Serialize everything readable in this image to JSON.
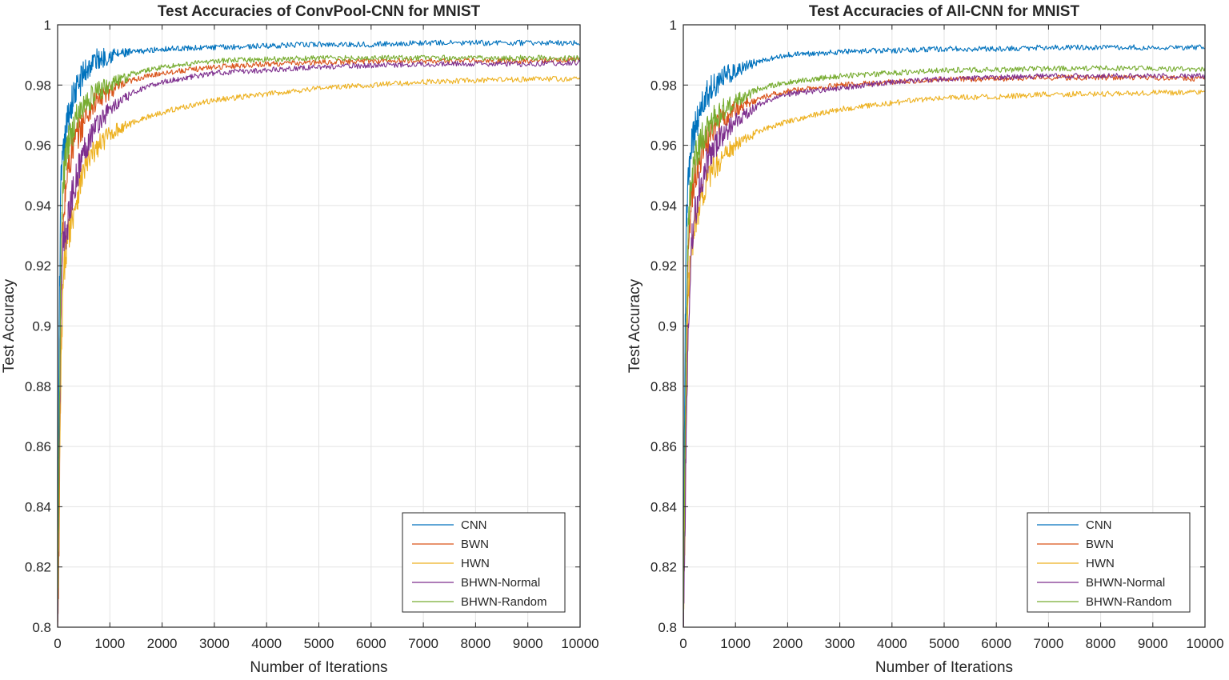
{
  "chart_data": [
    {
      "type": "line",
      "title": "Test Accuracies of ConvPool-CNN for MNIST",
      "xlabel": "Number of Iterations",
      "ylabel": "Test Accuracy",
      "xlim": [
        0,
        10000
      ],
      "ylim": [
        0.8,
        1
      ],
      "xticks": [
        "0",
        "1000",
        "2000",
        "3000",
        "4000",
        "5000",
        "6000",
        "7000",
        "8000",
        "9000",
        "10000"
      ],
      "yticks": [
        "0.8",
        "0.82",
        "0.84",
        "0.86",
        "0.88",
        "0.9",
        "0.92",
        "0.94",
        "0.96",
        "0.98",
        "1"
      ],
      "grid": true,
      "legend_position": "bottom-right",
      "series": [
        {
          "name": "CNN",
          "color": "#0072BD",
          "x": [
            0,
            30,
            60,
            100,
            150,
            200,
            300,
            400,
            500,
            700,
            1000,
            1500,
            2000,
            3000,
            4000,
            5000,
            6000,
            7000,
            8000,
            9000,
            10000
          ],
          "y": [
            0.815,
            0.9,
            0.945,
            0.955,
            0.962,
            0.97,
            0.976,
            0.98,
            0.984,
            0.988,
            0.99,
            0.991,
            0.992,
            0.9925,
            0.993,
            0.9935,
            0.9935,
            0.994,
            0.994,
            0.994,
            0.994
          ]
        },
        {
          "name": "BWN",
          "color": "#D95319",
          "x": [
            0,
            30,
            60,
            100,
            150,
            200,
            300,
            400,
            500,
            700,
            1000,
            1500,
            2000,
            3000,
            4000,
            5000,
            6000,
            7000,
            8000,
            9000,
            10000
          ],
          "y": [
            0.8,
            0.83,
            0.9,
            0.93,
            0.945,
            0.952,
            0.96,
            0.964,
            0.968,
            0.974,
            0.978,
            0.982,
            0.984,
            0.986,
            0.987,
            0.9875,
            0.988,
            0.988,
            0.988,
            0.988,
            0.9885
          ]
        },
        {
          "name": "HWN",
          "color": "#EDB120",
          "x": [
            0,
            30,
            60,
            100,
            150,
            200,
            300,
            400,
            500,
            700,
            1000,
            1500,
            2000,
            3000,
            4000,
            5000,
            6000,
            7000,
            8000,
            9000,
            10000
          ],
          "y": [
            0.8,
            0.84,
            0.88,
            0.91,
            0.925,
            0.93,
            0.938,
            0.945,
            0.952,
            0.958,
            0.964,
            0.968,
            0.971,
            0.975,
            0.977,
            0.979,
            0.98,
            0.981,
            0.9815,
            0.982,
            0.982
          ]
        },
        {
          "name": "BHWN-Normal",
          "color": "#7E2F8E",
          "x": [
            0,
            30,
            60,
            100,
            150,
            200,
            300,
            400,
            500,
            700,
            1000,
            1500,
            2000,
            3000,
            4000,
            5000,
            6000,
            7000,
            8000,
            9000,
            10000
          ],
          "y": [
            0.8,
            0.855,
            0.905,
            0.925,
            0.93,
            0.935,
            0.945,
            0.952,
            0.958,
            0.966,
            0.972,
            0.978,
            0.981,
            0.984,
            0.985,
            0.986,
            0.9865,
            0.987,
            0.987,
            0.987,
            0.9875
          ]
        },
        {
          "name": "BHWN-Random",
          "color": "#77AC30",
          "x": [
            0,
            30,
            60,
            100,
            150,
            200,
            300,
            400,
            500,
            700,
            1000,
            1500,
            2000,
            3000,
            4000,
            5000,
            6000,
            7000,
            8000,
            9000,
            10000
          ],
          "y": [
            0.8,
            0.86,
            0.92,
            0.945,
            0.955,
            0.96,
            0.966,
            0.97,
            0.973,
            0.977,
            0.98,
            0.984,
            0.986,
            0.988,
            0.9885,
            0.989,
            0.989,
            0.989,
            0.989,
            0.989,
            0.989
          ]
        }
      ]
    },
    {
      "type": "line",
      "title": "Test Accuracies of All-CNN for MNIST",
      "xlabel": "Number of Iterations",
      "ylabel": "Test Accuracy",
      "xlim": [
        0,
        10000
      ],
      "ylim": [
        0.8,
        1
      ],
      "xticks": [
        "0",
        "1000",
        "2000",
        "3000",
        "4000",
        "5000",
        "6000",
        "7000",
        "8000",
        "9000",
        "10000"
      ],
      "yticks": [
        "0.8",
        "0.82",
        "0.84",
        "0.86",
        "0.88",
        "0.9",
        "0.92",
        "0.94",
        "0.96",
        "0.98",
        "1"
      ],
      "grid": true,
      "legend_position": "bottom-right",
      "series": [
        {
          "name": "CNN",
          "color": "#0072BD",
          "x": [
            0,
            30,
            60,
            100,
            150,
            200,
            300,
            400,
            500,
            700,
            1000,
            1500,
            2000,
            3000,
            4000,
            5000,
            6000,
            7000,
            8000,
            9000,
            10000
          ],
          "y": [
            0.8,
            0.89,
            0.935,
            0.95,
            0.958,
            0.964,
            0.97,
            0.975,
            0.978,
            0.982,
            0.985,
            0.988,
            0.99,
            0.991,
            0.9915,
            0.992,
            0.992,
            0.9925,
            0.9925,
            0.9925,
            0.9925
          ]
        },
        {
          "name": "BWN",
          "color": "#D95319",
          "x": [
            0,
            30,
            60,
            100,
            150,
            200,
            300,
            400,
            500,
            700,
            1000,
            1500,
            2000,
            3000,
            4000,
            5000,
            6000,
            7000,
            8000,
            9000,
            10000
          ],
          "y": [
            0.8,
            0.85,
            0.9,
            0.925,
            0.94,
            0.948,
            0.955,
            0.96,
            0.963,
            0.968,
            0.972,
            0.976,
            0.978,
            0.98,
            0.981,
            0.982,
            0.982,
            0.9825,
            0.9825,
            0.9825,
            0.982
          ]
        },
        {
          "name": "HWN",
          "color": "#EDB120",
          "x": [
            0,
            30,
            60,
            100,
            150,
            200,
            300,
            400,
            500,
            700,
            1000,
            1500,
            2000,
            3000,
            4000,
            5000,
            6000,
            7000,
            8000,
            9000,
            10000
          ],
          "y": [
            0.8,
            0.83,
            0.88,
            0.91,
            0.925,
            0.932,
            0.94,
            0.945,
            0.95,
            0.955,
            0.96,
            0.965,
            0.968,
            0.972,
            0.974,
            0.976,
            0.976,
            0.977,
            0.977,
            0.9775,
            0.9775
          ]
        },
        {
          "name": "BHWN-Normal",
          "color": "#7E2F8E",
          "x": [
            0,
            30,
            60,
            100,
            150,
            200,
            300,
            400,
            500,
            700,
            1000,
            1500,
            2000,
            3000,
            4000,
            5000,
            6000,
            7000,
            8000,
            9000,
            10000
          ],
          "y": [
            0.8,
            0.83,
            0.87,
            0.9,
            0.925,
            0.935,
            0.945,
            0.952,
            0.956,
            0.962,
            0.968,
            0.974,
            0.977,
            0.979,
            0.981,
            0.982,
            0.9825,
            0.983,
            0.983,
            0.983,
            0.983
          ]
        },
        {
          "name": "BHWN-Random",
          "color": "#77AC30",
          "x": [
            0,
            30,
            60,
            100,
            150,
            200,
            300,
            400,
            500,
            700,
            1000,
            1500,
            2000,
            3000,
            4000,
            5000,
            6000,
            7000,
            8000,
            9000,
            10000
          ],
          "y": [
            0.8,
            0.86,
            0.905,
            0.935,
            0.948,
            0.953,
            0.96,
            0.964,
            0.967,
            0.971,
            0.975,
            0.979,
            0.981,
            0.983,
            0.984,
            0.985,
            0.985,
            0.9855,
            0.9855,
            0.9855,
            0.985
          ]
        }
      ]
    }
  ]
}
